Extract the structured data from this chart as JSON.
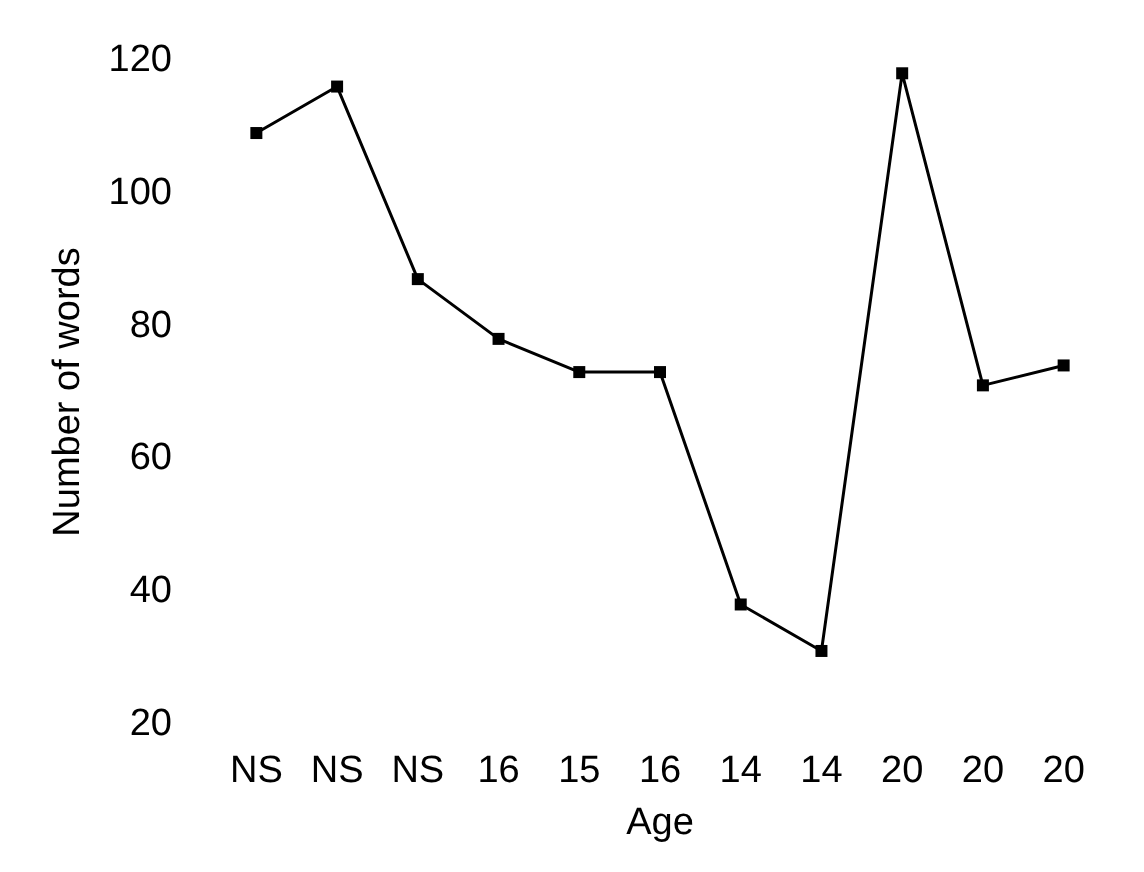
{
  "chart_data": {
    "type": "line",
    "xlabel": "Age",
    "ylabel": "Number of words",
    "categories": [
      "NS",
      "NS",
      "NS",
      "16",
      "15",
      "16",
      "14",
      "14",
      "20",
      "20",
      "20"
    ],
    "series": [
      {
        "color": "#000000",
        "values": [
          109,
          116,
          87,
          78,
          73,
          73,
          38,
          31,
          118,
          71,
          74
        ]
      }
    ],
    "ylim": [
      20,
      120
    ],
    "yticks": [
      20,
      40,
      60,
      80,
      100,
      120
    ],
    "grid": false,
    "marker": "square",
    "line_style": "solid"
  }
}
